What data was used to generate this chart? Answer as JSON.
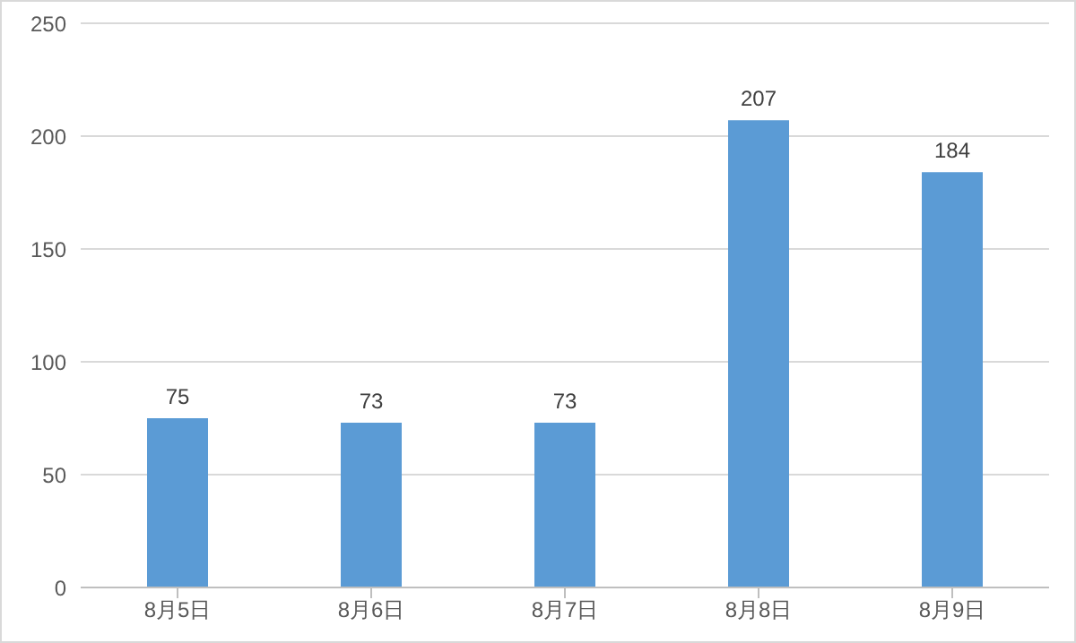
{
  "chart_data": {
    "type": "bar",
    "categories": [
      "8月5日",
      "8月6日",
      "8月7日",
      "8月8日",
      "8月9日"
    ],
    "values": [
      75,
      73,
      73,
      207,
      184
    ],
    "color": "#5b9bd5",
    "ylim": [
      0,
      250
    ],
    "yticks": [
      0,
      50,
      100,
      150,
      200,
      250
    ],
    "grid": "y",
    "data_labels": true
  }
}
